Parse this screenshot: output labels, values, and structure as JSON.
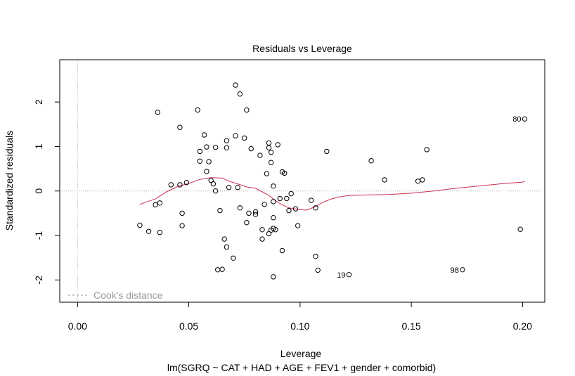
{
  "chart_data": {
    "type": "scatter",
    "title": "Residuals vs Leverage",
    "xlabel": "Leverage",
    "ylabel": "Standardized residuals",
    "subtitle": "lm(SGRQ ~ CAT + HAD + AGE + FEV1 + gender + comorbid)",
    "xlim": [
      -0.008,
      0.21
    ],
    "ylim": [
      -2.5,
      2.95
    ],
    "x_ticks": [
      0.0,
      0.05,
      0.1,
      0.15,
      0.2
    ],
    "x_tick_labels": [
      "0.00",
      "0.05",
      "0.10",
      "0.15",
      "0.20"
    ],
    "y_ticks": [
      -2,
      -1,
      0,
      1,
      2
    ],
    "y_tick_labels": [
      "-2",
      "-1",
      "0",
      "1",
      "2"
    ],
    "legend": {
      "label": "Cook's distance",
      "position": "bottom-left",
      "line_style": "dashed",
      "color": "#999999"
    },
    "reference_lines": {
      "y": 0,
      "x": 0,
      "style": "dotted",
      "color": "#aaaaaa"
    },
    "point_color": "#000000",
    "smooth_color": "#cc2f4f",
    "points": [
      [
        0.028,
        -0.77
      ],
      [
        0.032,
        -0.91
      ],
      [
        0.035,
        -0.31
      ],
      [
        0.036,
        1.77
      ],
      [
        0.037,
        -0.93
      ],
      [
        0.037,
        -0.27
      ],
      [
        0.042,
        0.14
      ],
      [
        0.046,
        1.43
      ],
      [
        0.046,
        0.14
      ],
      [
        0.047,
        -0.5
      ],
      [
        0.047,
        -0.78
      ],
      [
        0.049,
        0.19
      ],
      [
        0.054,
        1.82
      ],
      [
        0.055,
        0.89
      ],
      [
        0.055,
        0.67
      ],
      [
        0.057,
        1.26
      ],
      [
        0.058,
        0.99
      ],
      [
        0.058,
        0.44
      ],
      [
        0.059,
        0.66
      ],
      [
        0.06,
        0.24
      ],
      [
        0.061,
        0.16
      ],
      [
        0.062,
        0.98
      ],
      [
        0.062,
        0.0
      ],
      [
        0.063,
        -1.77
      ],
      [
        0.064,
        -0.44
      ],
      [
        0.065,
        -1.76
      ],
      [
        0.066,
        -1.08
      ],
      [
        0.067,
        0.97
      ],
      [
        0.067,
        1.13
      ],
      [
        0.067,
        -1.26
      ],
      [
        0.068,
        0.08
      ],
      [
        0.07,
        -1.51
      ],
      [
        0.071,
        1.24
      ],
      [
        0.071,
        2.38
      ],
      [
        0.072,
        0.08
      ],
      [
        0.073,
        2.18
      ],
      [
        0.073,
        -0.38
      ],
      [
        0.075,
        1.19
      ],
      [
        0.076,
        1.82
      ],
      [
        0.076,
        -0.71
      ],
      [
        0.077,
        -0.5
      ],
      [
        0.078,
        0.95
      ],
      [
        0.08,
        -0.47
      ],
      [
        0.08,
        -0.53
      ],
      [
        0.082,
        0.8
      ],
      [
        0.083,
        -1.08
      ],
      [
        0.083,
        -0.87
      ],
      [
        0.084,
        -0.3
      ],
      [
        0.085,
        0.39
      ],
      [
        0.086,
        1.08
      ],
      [
        0.086,
        0.97
      ],
      [
        0.086,
        -0.96
      ],
      [
        0.087,
        0.87
      ],
      [
        0.087,
        0.64
      ],
      [
        0.087,
        -0.88
      ],
      [
        0.088,
        -1.93
      ],
      [
        0.088,
        -0.84
      ],
      [
        0.088,
        0.11
      ],
      [
        0.088,
        -0.6
      ],
      [
        0.088,
        -0.24
      ],
      [
        0.089,
        -0.87
      ],
      [
        0.09,
        1.04
      ],
      [
        0.091,
        -0.17
      ],
      [
        0.092,
        0.43
      ],
      [
        0.092,
        -1.34
      ],
      [
        0.093,
        0.4
      ],
      [
        0.094,
        -0.17
      ],
      [
        0.095,
        -0.44
      ],
      [
        0.096,
        -0.06
      ],
      [
        0.098,
        -0.4
      ],
      [
        0.099,
        -0.78
      ],
      [
        0.105,
        -0.21
      ],
      [
        0.107,
        -0.38
      ],
      [
        0.107,
        -1.47
      ],
      [
        0.108,
        -1.78
      ],
      [
        0.112,
        0.89
      ],
      [
        0.122,
        -1.88
      ],
      [
        0.132,
        0.68
      ],
      [
        0.138,
        0.25
      ],
      [
        0.153,
        0.22
      ],
      [
        0.155,
        0.25
      ],
      [
        0.157,
        0.93
      ],
      [
        0.173,
        -1.77
      ],
      [
        0.199,
        -0.86
      ],
      [
        0.201,
        1.62
      ]
    ],
    "smooth_line": [
      [
        0.028,
        -0.3
      ],
      [
        0.035,
        -0.18
      ],
      [
        0.04,
        -0.02
      ],
      [
        0.045,
        0.1
      ],
      [
        0.05,
        0.17
      ],
      [
        0.055,
        0.26
      ],
      [
        0.06,
        0.3
      ],
      [
        0.065,
        0.29
      ],
      [
        0.068,
        0.22
      ],
      [
        0.072,
        0.16
      ],
      [
        0.076,
        0.09
      ],
      [
        0.08,
        0.06
      ],
      [
        0.083,
        -0.02
      ],
      [
        0.086,
        -0.1
      ],
      [
        0.089,
        -0.22
      ],
      [
        0.092,
        -0.31
      ],
      [
        0.095,
        -0.38
      ],
      [
        0.1,
        -0.42
      ],
      [
        0.103,
        -0.43
      ],
      [
        0.107,
        -0.35
      ],
      [
        0.11,
        -0.26
      ],
      [
        0.114,
        -0.18
      ],
      [
        0.118,
        -0.13
      ],
      [
        0.122,
        -0.1
      ],
      [
        0.13,
        -0.09
      ],
      [
        0.14,
        -0.08
      ],
      [
        0.15,
        -0.05
      ],
      [
        0.16,
        0.0
      ],
      [
        0.17,
        0.06
      ],
      [
        0.18,
        0.11
      ],
      [
        0.19,
        0.16
      ],
      [
        0.2,
        0.2
      ],
      [
        0.201,
        0.21
      ]
    ],
    "labeled_points": [
      {
        "label": "80",
        "x": 0.201,
        "y": 1.62,
        "side": "left"
      },
      {
        "label": "19",
        "x": 0.122,
        "y": -1.88,
        "side": "left"
      },
      {
        "label": "98",
        "x": 0.173,
        "y": -1.77,
        "side": "left"
      }
    ]
  }
}
